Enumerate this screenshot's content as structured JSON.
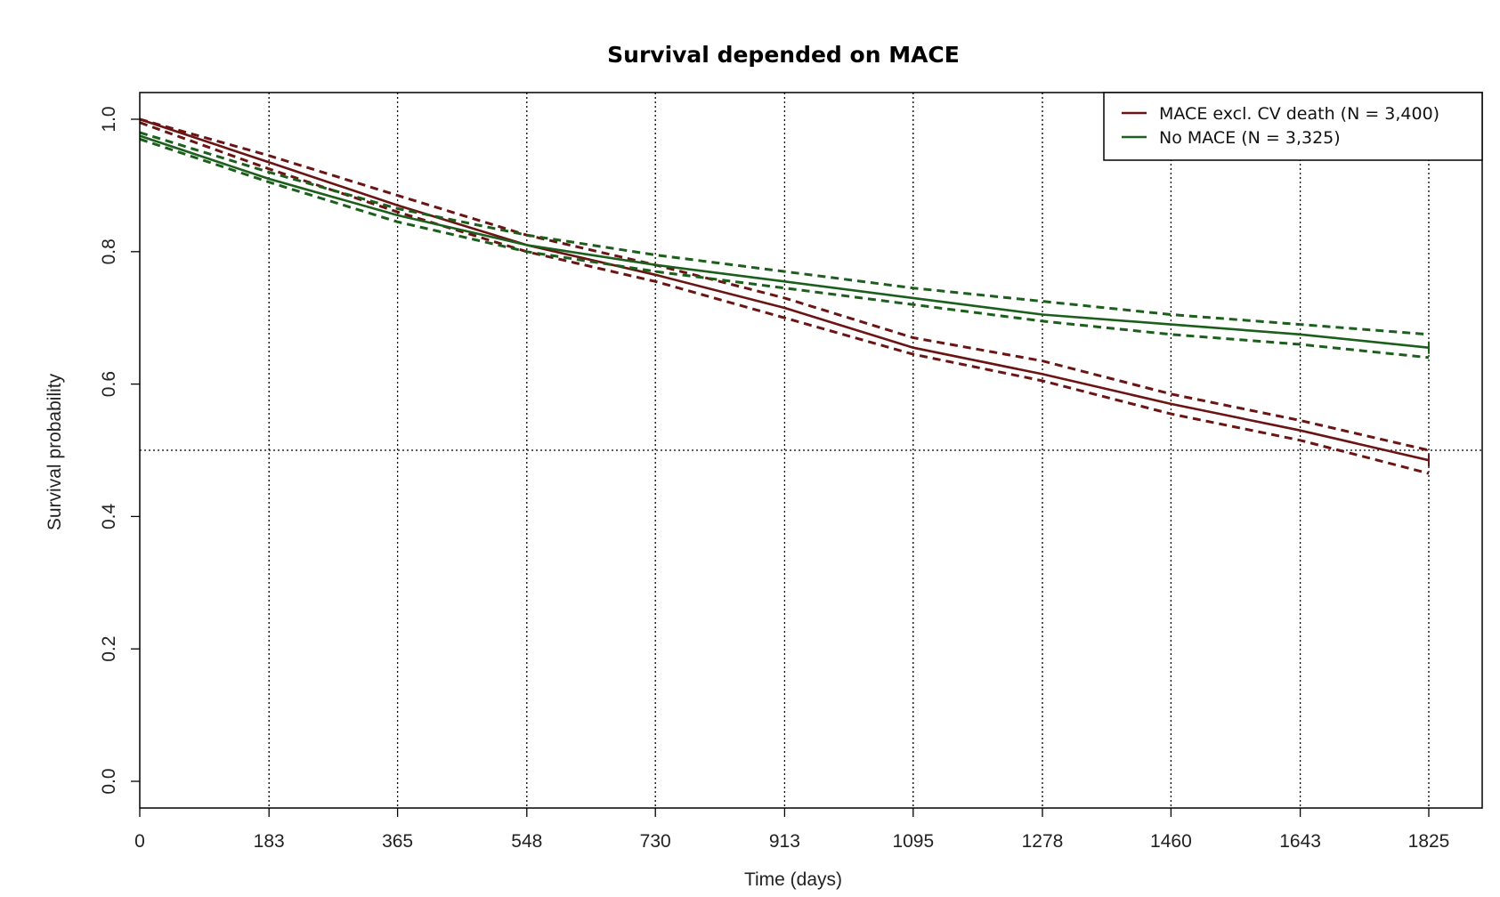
{
  "chart_data": {
    "type": "line",
    "title": "Survival depended on MACE",
    "xlabel": "Time (days)",
    "ylabel": "Survival probability",
    "xlim": [
      0,
      1825
    ],
    "ylim": [
      0,
      1.0
    ],
    "x_ticks": [
      "0",
      "183",
      "365",
      "548",
      "730",
      "913",
      "1095",
      "1278",
      "1460",
      "1643",
      "1825"
    ],
    "y_ticks": [
      "0.0",
      "0.2",
      "0.4",
      "0.6",
      "0.8",
      "1.0"
    ],
    "grid": "vertical dotted lines at x ticks",
    "reference_line": 0.5,
    "legend_position": "top-right",
    "legend": [
      "MACE excl. CV death (N = 3,400)",
      "No MACE (N = 3,325)"
    ],
    "series": [
      {
        "name": "MACE excl. CV death (N = 3,400)",
        "color": "#6b1414",
        "x": [
          0,
          183,
          365,
          548,
          730,
          913,
          1095,
          1278,
          1460,
          1643,
          1825
        ],
        "y": [
          1.0,
          0.935,
          0.87,
          0.81,
          0.765,
          0.715,
          0.655,
          0.615,
          0.57,
          0.53,
          0.485
        ],
        "ci_lower": [
          0.995,
          0.925,
          0.86,
          0.8,
          0.755,
          0.7,
          0.645,
          0.605,
          0.555,
          0.515,
          0.465
        ],
        "ci_upper": [
          1.0,
          0.945,
          0.885,
          0.825,
          0.78,
          0.73,
          0.67,
          0.635,
          0.585,
          0.545,
          0.5
        ]
      },
      {
        "name": "No MACE (N = 3,325)",
        "color": "#1c5e1c",
        "x": [
          0,
          183,
          365,
          548,
          730,
          913,
          1095,
          1278,
          1460,
          1643,
          1825
        ],
        "y": [
          0.975,
          0.91,
          0.855,
          0.81,
          0.78,
          0.755,
          0.73,
          0.705,
          0.69,
          0.675,
          0.655
        ],
        "ci_lower": [
          0.97,
          0.905,
          0.845,
          0.8,
          0.77,
          0.745,
          0.72,
          0.695,
          0.675,
          0.66,
          0.64
        ],
        "ci_upper": [
          0.98,
          0.92,
          0.865,
          0.825,
          0.795,
          0.77,
          0.745,
          0.725,
          0.705,
          0.69,
          0.675
        ]
      }
    ]
  }
}
